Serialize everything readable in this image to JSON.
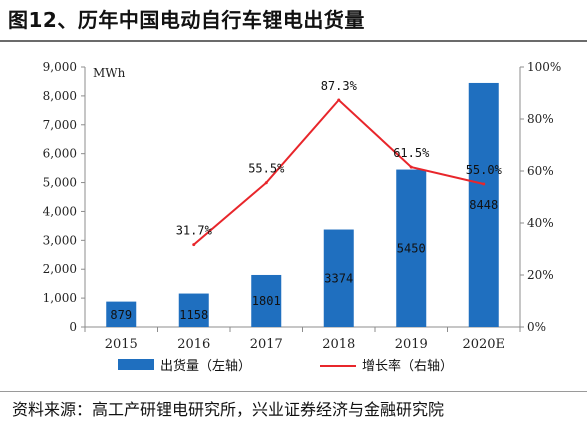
{
  "header": {
    "title": "图12、历年中国电动自行车锂电出货量"
  },
  "footer": {
    "source": "资料来源：高工产研锂电研究所，兴业证券经济与金融研究院"
  },
  "chart_data": {
    "type": "bar",
    "categories": [
      "2015",
      "2016",
      "2017",
      "2018",
      "2019",
      "2020E"
    ],
    "series": [
      {
        "name": "出货量（左轴）",
        "type": "bar",
        "axis": "left",
        "values": [
          879,
          1158,
          1801,
          3374,
          5450,
          8448
        ],
        "labels": [
          "879",
          "1158",
          "1801",
          "3374",
          "5450",
          "8448"
        ]
      },
      {
        "name": "增长率（右轴）",
        "type": "line",
        "axis": "right",
        "values": [
          null,
          31.7,
          55.5,
          87.3,
          61.5,
          55.0
        ],
        "labels": [
          "",
          "31.7%",
          "55.5%",
          "87.3%",
          "61.5%",
          "55.0%"
        ]
      }
    ],
    "y_unit": "MWh",
    "y_left": {
      "min": 0,
      "max": 9000,
      "ticks": [
        "0",
        "1,000",
        "2,000",
        "3,000",
        "4,000",
        "5,000",
        "6,000",
        "7,000",
        "8,000",
        "9,000"
      ]
    },
    "y_right": {
      "min": 0,
      "max": 100,
      "ticks": [
        "0%",
        "20%",
        "40%",
        "60%",
        "80%",
        "100%"
      ]
    },
    "grid": false,
    "legend": "bottom",
    "colors": {
      "bar": "#1f6fbf",
      "line": "#e8262b",
      "axis": "#8c8c8c"
    }
  }
}
